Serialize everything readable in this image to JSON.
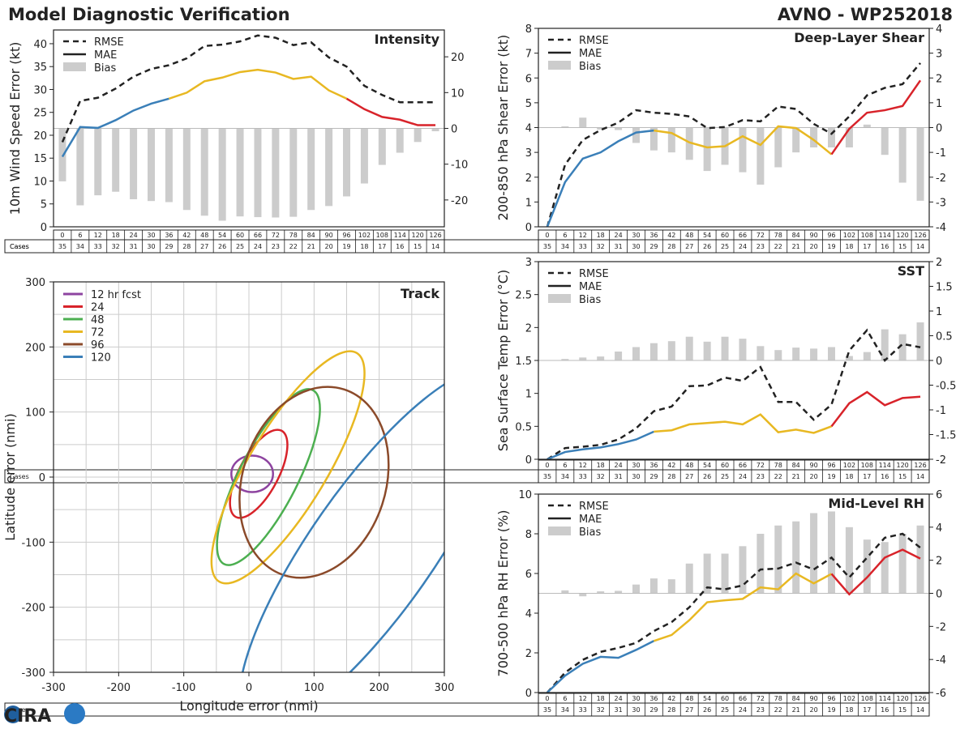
{
  "header": {
    "title": "Model Diagnostic Verification",
    "model_id": "AVNO - WP252018"
  },
  "logo": {
    "text": "CIRA"
  },
  "colors": {
    "phase1": "#3a7fb8",
    "phase2": "#e8b822",
    "phase3": "#d8232a",
    "bias": "#cccccc",
    "grid": "#cccccc",
    "line": "#222222"
  },
  "legend_labels": {
    "rmse": "RMSE",
    "mae": "MAE",
    "bias": "Bias"
  },
  "cases_row": {
    "label": "Cases",
    "hours": [
      0,
      6,
      12,
      18,
      24,
      30,
      36,
      42,
      48,
      54,
      60,
      66,
      72,
      78,
      84,
      90,
      96,
      102,
      108,
      114,
      120,
      126
    ],
    "counts": [
      35,
      34,
      33,
      32,
      31,
      30,
      29,
      28,
      27,
      26,
      25,
      24,
      23,
      22,
      21,
      20,
      19,
      18,
      17,
      16,
      15,
      14
    ]
  },
  "chart_data": [
    {
      "id": "intensity",
      "type": "line",
      "title": "Intensity",
      "ylabel": "10m Wind Speed Error (kt)",
      "ylim": [
        0,
        43
      ],
      "yticks": [
        0,
        5,
        10,
        15,
        20,
        25,
        30,
        35,
        40
      ],
      "y2lim": [
        -27.5,
        27.5
      ],
      "y2ticks": [
        -20,
        -10,
        0,
        10,
        20
      ],
      "x": [
        0,
        6,
        12,
        18,
        24,
        30,
        36,
        42,
        48,
        54,
        60,
        66,
        72,
        78,
        84,
        90,
        96,
        102,
        108,
        114,
        120,
        126
      ],
      "rmse": [
        18.5,
        27.5,
        28.2,
        30.2,
        32.8,
        34.5,
        35.3,
        36.8,
        39.5,
        39.8,
        40.5,
        41.8,
        41.3,
        39.7,
        40.3,
        37.0,
        35.0,
        30.8,
        28.8,
        27.2,
        27.2,
        27.2
      ],
      "mae": [
        15.3,
        21.8,
        21.6,
        23.3,
        25.4,
        26.9,
        28.0,
        29.3,
        31.8,
        32.6,
        33.8,
        34.3,
        33.7,
        32.3,
        32.8,
        29.8,
        28.0,
        25.7,
        24.0,
        23.4,
        22.2,
        22.2
      ],
      "bias": [
        -14.8,
        -21.5,
        -18.7,
        -17.7,
        -19.8,
        -20.3,
        -20.6,
        -22.8,
        -24.4,
        -25.8,
        -24.6,
        -24.8,
        -24.9,
        -24.7,
        -22.8,
        -21.7,
        -19.0,
        -15.4,
        -10.2,
        -6.8,
        -3.8,
        -0.8
      ]
    },
    {
      "id": "shear",
      "type": "line",
      "title": "Deep-Layer Shear",
      "ylabel": "200-850 hPa Shear Error (kt)",
      "ylim": [
        0,
        8
      ],
      "yticks": [
        0,
        1,
        2,
        3,
        4,
        5,
        6,
        7,
        8
      ],
      "y2lim": [
        -4,
        4
      ],
      "y2ticks": [
        -4,
        -3,
        -2,
        -1,
        0,
        1,
        2,
        3,
        4
      ],
      "x": [
        0,
        6,
        12,
        18,
        24,
        30,
        36,
        42,
        48,
        54,
        60,
        66,
        72,
        78,
        84,
        90,
        96,
        102,
        108,
        114,
        120,
        126
      ],
      "rmse": [
        0.0,
        2.5,
        3.5,
        3.9,
        4.2,
        4.7,
        4.6,
        4.55,
        4.45,
        3.98,
        4.02,
        4.3,
        4.25,
        4.85,
        4.75,
        4.15,
        3.75,
        4.45,
        5.3,
        5.6,
        5.75,
        6.6
      ],
      "mae": [
        0.0,
        1.8,
        2.75,
        3.0,
        3.45,
        3.8,
        3.88,
        3.78,
        3.4,
        3.2,
        3.25,
        3.65,
        3.3,
        4.05,
        3.98,
        3.5,
        2.92,
        3.95,
        4.6,
        4.7,
        4.87,
        5.9
      ],
      "bias": [
        0.0,
        0.05,
        0.4,
        -0.08,
        -0.1,
        -0.62,
        -0.92,
        -1.0,
        -1.3,
        -1.75,
        -1.5,
        -1.8,
        -2.3,
        -1.6,
        -1.0,
        -0.8,
        -0.8,
        -0.8,
        0.12,
        -1.1,
        -2.22,
        -2.95
      ]
    },
    {
      "id": "sst",
      "type": "line",
      "title": "SST",
      "ylabel": "Sea Surface Temp Error (°C)",
      "ylim": [
        0,
        3.0
      ],
      "yticks": [
        0.0,
        0.5,
        1.0,
        1.5,
        2.0,
        2.5,
        3.0
      ],
      "y2lim": [
        -2.0,
        2.0
      ],
      "y2ticks": [
        -2.0,
        -1.5,
        -1.0,
        -0.5,
        0.0,
        0.5,
        1.0,
        1.5,
        2.0
      ],
      "x": [
        0,
        6,
        12,
        18,
        24,
        30,
        36,
        42,
        48,
        54,
        60,
        66,
        72,
        78,
        84,
        90,
        96,
        102,
        108,
        114,
        120,
        126
      ],
      "rmse": [
        0.0,
        0.17,
        0.19,
        0.22,
        0.3,
        0.47,
        0.73,
        0.8,
        1.11,
        1.12,
        1.24,
        1.19,
        1.4,
        0.87,
        0.87,
        0.6,
        0.83,
        1.65,
        1.96,
        1.5,
        1.75,
        1.7
      ],
      "mae": [
        0.0,
        0.11,
        0.15,
        0.18,
        0.23,
        0.3,
        0.42,
        0.44,
        0.53,
        0.55,
        0.57,
        0.53,
        0.68,
        0.41,
        0.45,
        0.4,
        0.5,
        0.85,
        1.02,
        0.82,
        0.93,
        0.95
      ],
      "bias": [
        0.0,
        0.03,
        0.06,
        0.08,
        0.18,
        0.27,
        0.35,
        0.39,
        0.48,
        0.38,
        0.48,
        0.44,
        0.29,
        0.21,
        0.26,
        0.24,
        0.27,
        0.09,
        0.17,
        0.63,
        0.53,
        0.77
      ]
    },
    {
      "id": "rh",
      "type": "line",
      "title": "Mid-Level RH",
      "ylabel": "700-500 hPa RH Error (%)",
      "ylim": [
        0,
        10
      ],
      "yticks": [
        0,
        2,
        4,
        6,
        8,
        10
      ],
      "y2lim": [
        -6,
        6
      ],
      "y2ticks": [
        -6,
        -4,
        -2,
        0,
        2,
        4,
        6
      ],
      "x": [
        0,
        6,
        12,
        18,
        24,
        30,
        36,
        42,
        48,
        54,
        60,
        66,
        72,
        78,
        84,
        90,
        96,
        102,
        108,
        114,
        120,
        126
      ],
      "rmse": [
        0.0,
        1.0,
        1.65,
        2.05,
        2.25,
        2.5,
        3.1,
        3.55,
        4.3,
        5.3,
        5.2,
        5.4,
        6.2,
        6.25,
        6.55,
        6.2,
        6.8,
        5.8,
        6.8,
        7.8,
        8.0,
        7.3
      ],
      "mae": [
        0.0,
        0.85,
        1.45,
        1.8,
        1.75,
        2.15,
        2.6,
        2.9,
        3.65,
        4.55,
        4.65,
        4.72,
        5.3,
        5.2,
        6.0,
        5.5,
        5.98,
        4.95,
        5.8,
        6.8,
        7.2,
        6.75
      ],
      "bias": [
        0.0,
        0.18,
        -0.18,
        0.12,
        0.15,
        0.53,
        0.9,
        0.85,
        1.8,
        2.4,
        2.4,
        2.85,
        3.6,
        4.1,
        4.35,
        4.85,
        4.95,
        4.0,
        3.25,
        3.1,
        3.6,
        4.1
      ]
    },
    {
      "id": "track",
      "type": "scatter",
      "title": "Track",
      "xlabel": "Longitude error (nmi)",
      "ylabel": "Latitude error (nmi)",
      "xlim": [
        -300,
        300
      ],
      "ylim": [
        -300,
        300
      ],
      "xticks": [
        -300,
        -200,
        -100,
        0,
        100,
        200,
        300
      ],
      "yticks": [
        -300,
        -200,
        -100,
        0,
        100,
        200,
        300
      ],
      "ellipses": [
        {
          "label": "12 hr fcst",
          "color": "#8e44a0",
          "cx": 5,
          "cy": 5,
          "rx": 32,
          "ry": 28,
          "angle": 0
        },
        {
          "label": "24",
          "color": "#d8232a",
          "cx": 15,
          "cy": 5,
          "rx": 75,
          "ry": 30,
          "angle": 62
        },
        {
          "label": "48",
          "color": "#4caf50",
          "cx": 30,
          "cy": 0,
          "rx": 150,
          "ry": 45,
          "angle": 63
        },
        {
          "label": "72",
          "color": "#e8b822",
          "cx": 60,
          "cy": 15,
          "rx": 205,
          "ry": 60,
          "angle": 59
        },
        {
          "label": "96",
          "color": "#8b4a2a",
          "cx": 100,
          "cy": -8,
          "rx": 150,
          "ry": 110,
          "angle": 72
        },
        {
          "label": "120",
          "color": "#3a7fb8",
          "cx": 190,
          "cy": -110,
          "rx": 330,
          "ry": 95,
          "angle": 55
        }
      ]
    }
  ]
}
